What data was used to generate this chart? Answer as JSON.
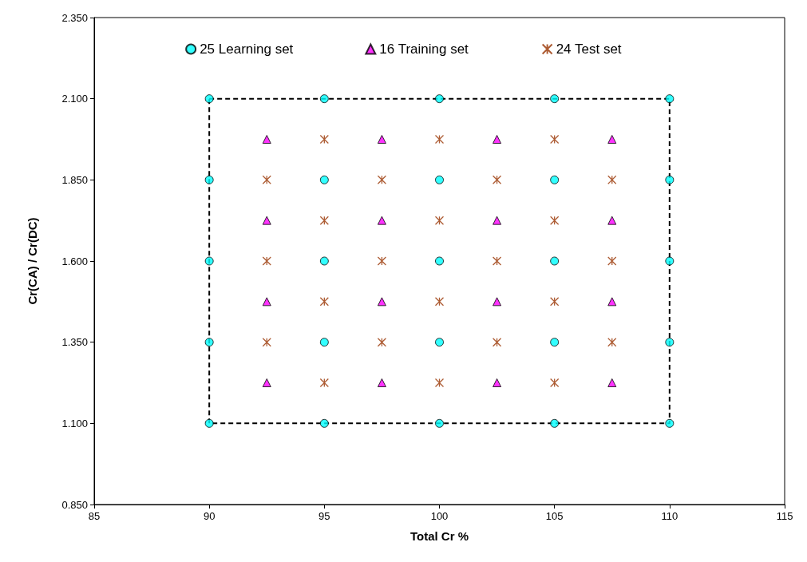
{
  "chart_data": {
    "type": "scatter",
    "xlabel": "Total Cr %",
    "ylabel": "Cr(CA) / Cr(DC)",
    "xlim": [
      85,
      115
    ],
    "xticks": [
      85,
      90,
      95,
      100,
      105,
      110,
      115
    ],
    "ylim": [
      0.85,
      2.35
    ],
    "yticks": [
      {
        "value": 0.85,
        "label": "0.850"
      },
      {
        "value": 1.1,
        "label": "1.100"
      },
      {
        "value": 1.35,
        "label": "1.350"
      },
      {
        "value": 1.6,
        "label": "1.600"
      },
      {
        "value": 1.85,
        "label": "1.850"
      },
      {
        "value": 2.1,
        "label": "2.100"
      },
      {
        "value": 2.35,
        "label": "2.350"
      }
    ],
    "grid": false,
    "legend": "top",
    "series": [
      {
        "name": "25 Learning set",
        "color": "#00ffff",
        "marker": "circle",
        "x": [
          90,
          95,
          100,
          105,
          110,
          90,
          95,
          100,
          105,
          110,
          90,
          95,
          100,
          105,
          110,
          90,
          95,
          100,
          105,
          110,
          90,
          95,
          100,
          105,
          110
        ],
        "values": [
          1.1,
          1.1,
          1.1,
          1.1,
          1.1,
          1.35,
          1.35,
          1.35,
          1.35,
          1.35,
          1.6,
          1.6,
          1.6,
          1.6,
          1.6,
          1.85,
          1.85,
          1.85,
          1.85,
          1.85,
          2.1,
          2.1,
          2.1,
          2.1,
          2.1
        ]
      },
      {
        "name": "16 Training set",
        "color": "#ff00ff",
        "marker": "triangle",
        "x": [
          92.5,
          97.5,
          102.5,
          107.5,
          92.5,
          97.5,
          102.5,
          107.5,
          92.5,
          97.5,
          102.5,
          107.5,
          92.5,
          97.5,
          102.5,
          107.5
        ],
        "values": [
          1.225,
          1.225,
          1.225,
          1.225,
          1.475,
          1.475,
          1.475,
          1.475,
          1.725,
          1.725,
          1.725,
          1.725,
          1.975,
          1.975,
          1.975,
          1.975
        ]
      },
      {
        "name": "24 Test set",
        "color": "#993300",
        "marker": "cross",
        "x": [
          95,
          100,
          105,
          95,
          100,
          105,
          95,
          100,
          105,
          95,
          100,
          105,
          92.5,
          97.5,
          102.5,
          107.5,
          92.5,
          97.5,
          102.5,
          107.5,
          92.5,
          97.5,
          102.5,
          107.5
        ],
        "values": [
          1.225,
          1.225,
          1.225,
          1.475,
          1.475,
          1.475,
          1.725,
          1.725,
          1.725,
          1.975,
          1.975,
          1.975,
          1.35,
          1.35,
          1.35,
          1.35,
          1.6,
          1.6,
          1.6,
          1.6,
          1.85,
          1.85,
          1.85,
          1.85
        ]
      }
    ]
  }
}
